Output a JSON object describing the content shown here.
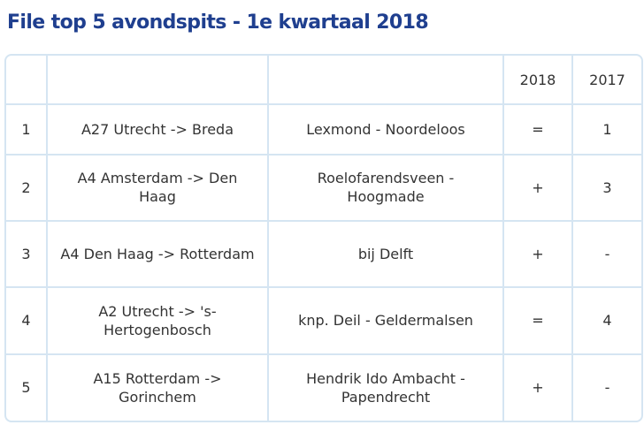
{
  "title": "File top 5 avondspits - 1e kwartaal 2018",
  "table": {
    "headers": [
      "",
      "",
      "",
      "2018",
      "2017"
    ],
    "rows": [
      {
        "rank": "1",
        "route": "A27 Utrecht -> Breda",
        "location": "Lexmond - Noordeloos",
        "y2018": "=",
        "y2017": "1"
      },
      {
        "rank": "2",
        "route": "A4 Amsterdam -> Den Haag",
        "location": "Roelofarendsveen - Hoogmade",
        "y2018": "+",
        "y2017": "3"
      },
      {
        "rank": "3",
        "route": "A4 Den Haag -> Rotterdam",
        "location": "bij Delft",
        "y2018": "+",
        "y2017": "-"
      },
      {
        "rank": "4",
        "route": "A2 Utrecht -> 's-Hertogenbosch",
        "location": "knp. Deil - Geldermalsen",
        "y2018": "=",
        "y2017": "4"
      },
      {
        "rank": "5",
        "route": "A15 Rotterdam -> Gorinchem",
        "location": "Hendrik Ido Ambacht - Papendrecht",
        "y2018": "+",
        "y2017": "-"
      }
    ]
  },
  "colors": {
    "title": "#1f3f8f",
    "text": "#333333",
    "border": "#d5e5f2"
  }
}
